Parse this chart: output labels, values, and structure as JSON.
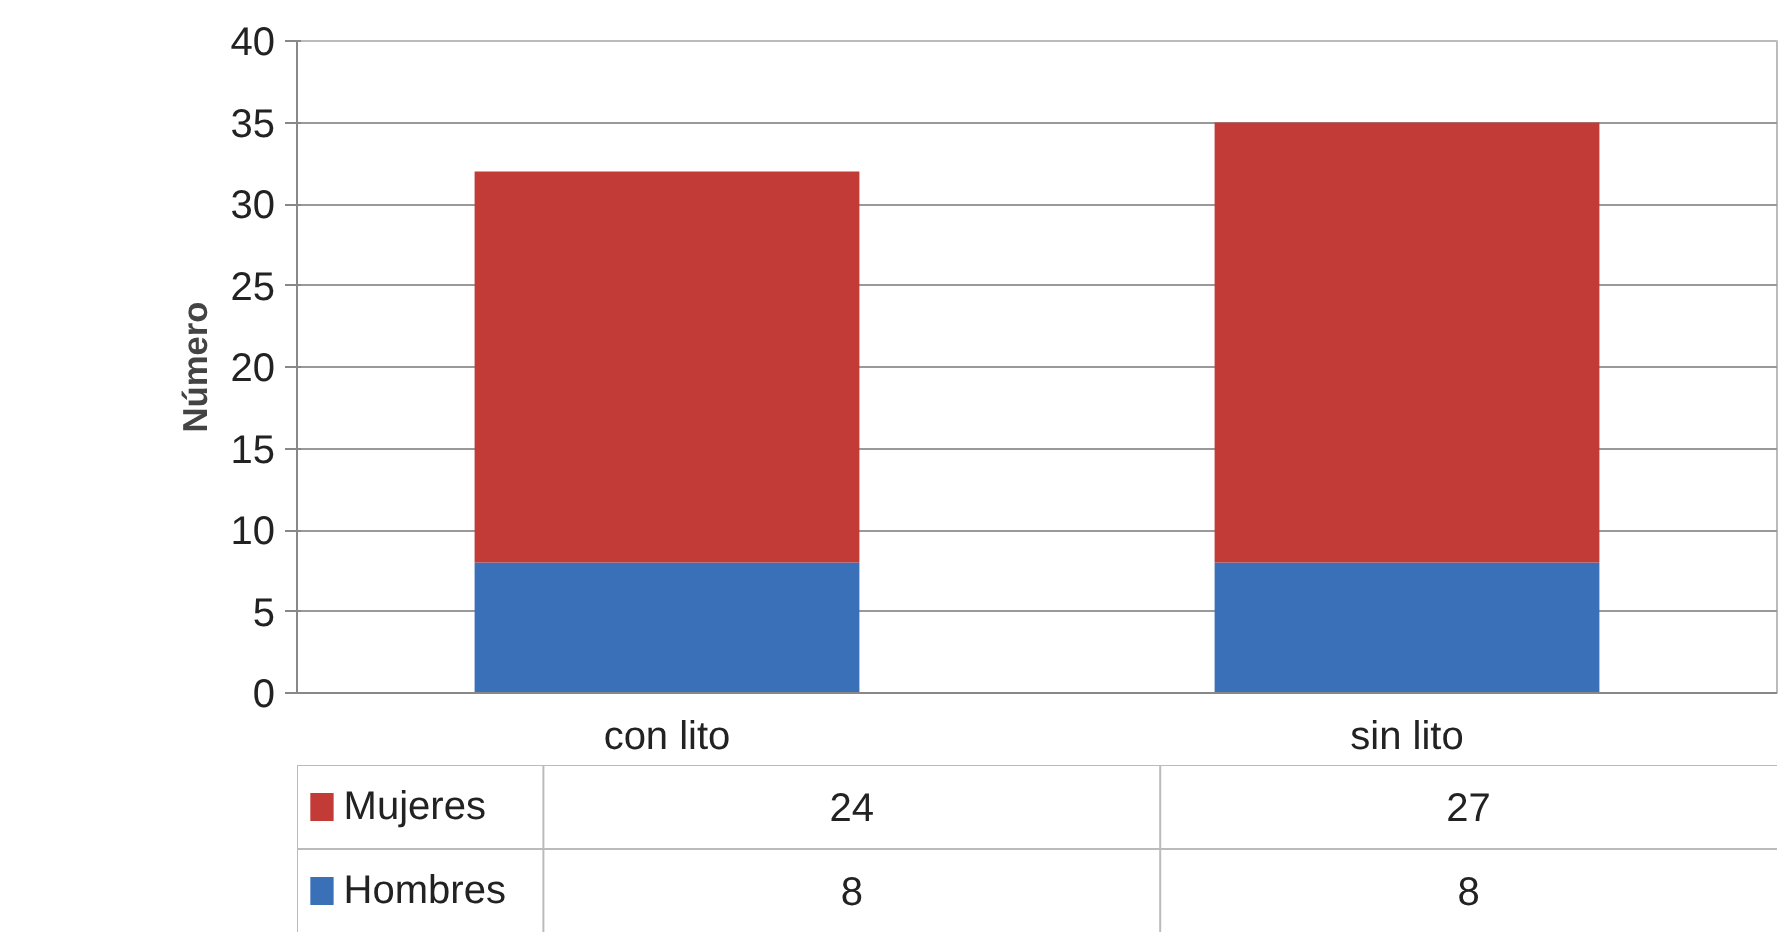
{
  "chart_data": {
    "type": "bar",
    "stacked": true,
    "ylabel": "Número",
    "categories": [
      "con lito",
      "sin lito"
    ],
    "series": [
      {
        "name": "Hombres",
        "color": "#3a70b8",
        "values": [
          8,
          8
        ]
      },
      {
        "name": "Mujeres",
        "color": "#c23b36",
        "values": [
          24,
          27
        ]
      }
    ],
    "ylim": [
      0,
      40
    ],
    "yticks": [
      0,
      5,
      10,
      15,
      20,
      25,
      30,
      35,
      40
    ],
    "grid": "y",
    "data_labels": true,
    "legend": "bottom"
  }
}
